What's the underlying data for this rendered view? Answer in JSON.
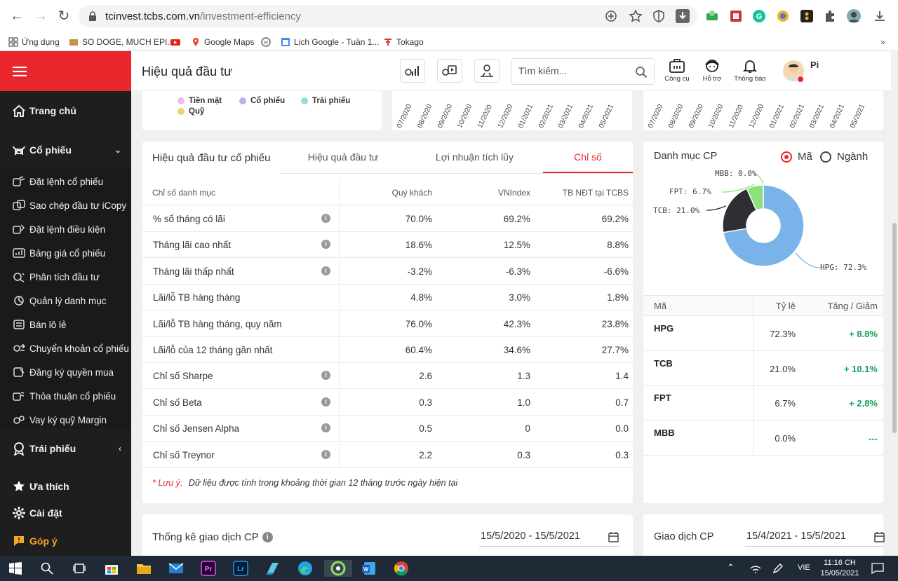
{
  "browser": {
    "url_host": "tcinvest.tcbs.com.vn",
    "url_path": "/investment-efficiency",
    "bookmarks": [
      "Ứng dụng",
      "SO DOGE, MUCH EPI...",
      "Google Maps",
      "Lịch Google - Tuần 1...",
      "Tokago"
    ]
  },
  "sidebar": {
    "home": "Trang chủ",
    "stocks": "Cổ phiếu",
    "stock_items": [
      "Đặt lệnh cổ phiếu",
      "Sao chép đầu tư iCopy",
      "Đặt lệnh điều kiện",
      "Bảng giá cổ phiếu",
      "Phân tích đầu tư",
      "Quản lý danh mục",
      "Bán lô lẻ",
      "Chuyển khoản cổ phiếu",
      "Đăng ký quyền mua",
      "Thỏa thuận cổ phiếu",
      "Vay ký quỹ Margin"
    ],
    "bonds": "Trái phiếu",
    "favorites": "Ưa thích",
    "settings": "Cài đặt",
    "feedback": "Góp ý"
  },
  "header": {
    "title": "Hiệu quả đầu tư",
    "search_placeholder": "Tìm kiếm...",
    "tools": [
      "Công cụ",
      "Hỗ trợ",
      "Thông báo"
    ],
    "user_initial": "Pi"
  },
  "top_legend": [
    {
      "label": "Tiền mặt",
      "color": "#f2b8f0"
    },
    {
      "label": "Cổ phiếu",
      "color": "#b8b2f2"
    },
    {
      "label": "Trái phiếu",
      "color": "#8fe0dc"
    },
    {
      "label": "Quỹ",
      "color": "#e5d667"
    }
  ],
  "timeline_ticks": [
    "07/2020",
    "08/2020",
    "09/2020",
    "10/2020",
    "11/2020",
    "12/2020",
    "01/2021",
    "02/2021",
    "03/2021",
    "04/2021",
    "05/2021"
  ],
  "efficiency": {
    "card_title": "Hiệu quả đầu tư cổ phiếu",
    "tabs": [
      "Hiệu quả đầu tư",
      "Lợi nhuận tích lũy",
      "Chỉ số"
    ],
    "columns": [
      "Chỉ số danh mục",
      "Quý khách",
      "VNIndex",
      "TB NĐT tại TCBS"
    ],
    "rows": [
      {
        "name": "% số tháng có lãi",
        "info": true,
        "client": "70.0%",
        "vnindex": "69.2%",
        "avg": "69.2%"
      },
      {
        "name": "Tháng lãi cao nhất",
        "info": true,
        "client": "18.6%",
        "vnindex": "12.5%",
        "avg": "8.8%"
      },
      {
        "name": "Tháng lãi thấp nhất",
        "info": true,
        "client": "-3.2%",
        "vnindex": "-6.3%",
        "avg": "-6.6%"
      },
      {
        "name": "Lãi/lỗ TB hàng tháng",
        "info": false,
        "client": "4.8%",
        "vnindex": "3.0%",
        "avg": "1.8%"
      },
      {
        "name": "Lãi/lỗ TB hàng tháng, quy năm",
        "info": false,
        "client": "76.0%",
        "vnindex": "42.3%",
        "avg": "23.8%"
      },
      {
        "name": "Lãi/lỗ của 12 tháng gần nhất",
        "info": false,
        "client": "60.4%",
        "vnindex": "34.6%",
        "avg": "27.7%"
      },
      {
        "name": "Chỉ số Sharpe",
        "info": true,
        "client": "2.6",
        "vnindex": "1.3",
        "avg": "1.4"
      },
      {
        "name": "Chỉ số Beta",
        "info": true,
        "client": "0.3",
        "vnindex": "1.0",
        "avg": "0.7"
      },
      {
        "name": "Chỉ số Jensen Alpha",
        "info": true,
        "client": "0.5",
        "vnindex": "0",
        "avg": "0.0"
      },
      {
        "name": "Chỉ số Treynor",
        "info": true,
        "client": "2.2",
        "vnindex": "0.3",
        "avg": "0.3"
      }
    ],
    "note_label": "* Lưu ý:",
    "note_text": "Dữ liệu được tính trong khoảng thời gian 12 tháng trước ngày hiện tại"
  },
  "portfolio": {
    "title": "Danh mục CP",
    "radio_options": [
      "Mã",
      "Ngành"
    ],
    "columns": [
      "Mã",
      "Tỷ lệ",
      "Tăng / Giảm"
    ],
    "rows": [
      {
        "code": "HPG",
        "ratio": "72.3%",
        "change": "+ 8.8%"
      },
      {
        "code": "TCB",
        "ratio": "21.0%",
        "change": "+ 10.1%"
      },
      {
        "code": "FPT",
        "ratio": "6.7%",
        "change": "+ 2.8%"
      },
      {
        "code": "MBB",
        "ratio": "0.0%",
        "change": "---"
      }
    ]
  },
  "chart_data": {
    "type": "pie",
    "categories": [
      "HPG",
      "TCB",
      "FPT",
      "MBB"
    ],
    "values": [
      72.3,
      21.0,
      6.7,
      0.0
    ],
    "labels": [
      "HPG: 72.3%",
      "TCB: 21.0%",
      "FPT: 6.7%",
      "MBB: 0.0%"
    ],
    "colors": [
      "#7ab3ea",
      "#2e2e33",
      "#8ce07d",
      "#f5c542"
    ]
  },
  "bottom": {
    "stats_title": "Thống kê giao dịch CP",
    "stats_range": "15/5/2020 - 15/5/2021",
    "trade_title": "Giao dịch CP",
    "trade_range": "15/4/2021 - 15/5/2021"
  },
  "taskbar": {
    "lang": "VIE",
    "time": "11:16 CH",
    "date": "15/05/2021"
  }
}
